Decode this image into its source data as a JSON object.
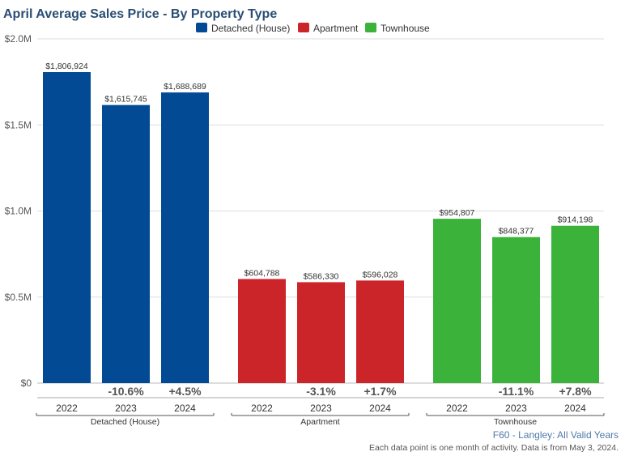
{
  "chart_data": {
    "type": "bar",
    "title": "April Average Sales Price - By Property Type",
    "legend": {
      "placement": "top-center",
      "entries": [
        {
          "name": "Detached (House)",
          "color": "#024a94"
        },
        {
          "name": "Apartment",
          "color": "#cc2529"
        },
        {
          "name": "Townhouse",
          "color": "#3bb33b"
        }
      ]
    },
    "y_axis": {
      "min": 0,
      "max": 2000000,
      "ticks": [
        {
          "value": 0,
          "label": "$0"
        },
        {
          "value": 500000,
          "label": "$0.5M"
        },
        {
          "value": 1000000,
          "label": "$1.0M"
        },
        {
          "value": 1500000,
          "label": "$1.5M"
        },
        {
          "value": 2000000,
          "label": "$2.0M"
        }
      ],
      "grid": true
    },
    "groups": [
      {
        "name": "Detached (House)",
        "color": "#024a94",
        "bars": [
          {
            "year": "2022",
            "value": 1806924,
            "label": "$1,806,924",
            "change": ""
          },
          {
            "year": "2023",
            "value": 1615745,
            "label": "$1,615,745",
            "change": "-10.6%"
          },
          {
            "year": "2024",
            "value": 1688689,
            "label": "$1,688,689",
            "change": "+4.5%"
          }
        ]
      },
      {
        "name": "Apartment",
        "color": "#cc2529",
        "bars": [
          {
            "year": "2022",
            "value": 604788,
            "label": "$604,788",
            "change": ""
          },
          {
            "year": "2023",
            "value": 586330,
            "label": "$586,330",
            "change": "-3.1%"
          },
          {
            "year": "2024",
            "value": 596028,
            "label": "$596,028",
            "change": "+1.7%"
          }
        ]
      },
      {
        "name": "Townhouse",
        "color": "#3bb33b",
        "bars": [
          {
            "year": "2022",
            "value": 954807,
            "label": "$954,807",
            "change": ""
          },
          {
            "year": "2023",
            "value": 848377,
            "label": "$848,377",
            "change": "-11.1%"
          },
          {
            "year": "2024",
            "value": 914198,
            "label": "$914,198",
            "change": "+7.8%"
          }
        ]
      }
    ]
  },
  "footer": {
    "source": "F60 - Langley: All Valid Years",
    "note": "Each data point is one month of activity. Data is from May 3, 2024."
  }
}
